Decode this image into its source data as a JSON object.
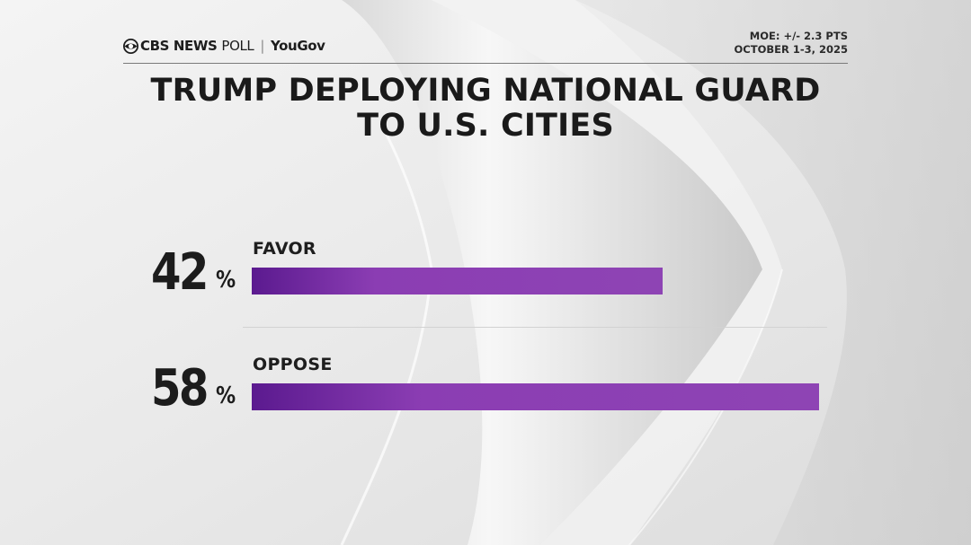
{
  "header": {
    "brand_cbs": "CBS NEWS",
    "brand_poll": "POLL",
    "brand_partner": "YouGov",
    "moe": "MOE: +/- 2.3 PTS",
    "dates": "OCTOBER 1-3, 2025"
  },
  "chart_data": {
    "type": "bar",
    "title_lines": [
      "TRUMP DEPLOYING NATIONAL GUARD",
      "TO U.S. CITIES"
    ],
    "categories": [
      "FAVOR",
      "OPPOSE"
    ],
    "values": [
      42,
      58
    ],
    "value_labels": [
      "42",
      "58"
    ],
    "value_suffix": "%",
    "xlim": [
      0,
      58
    ],
    "orientation": "horizontal",
    "bar_color": "#8e44b4"
  },
  "colors": {
    "bar_start": "#5b1a8f",
    "bar_end": "#8e44b4",
    "text": "#1a1a1a"
  }
}
